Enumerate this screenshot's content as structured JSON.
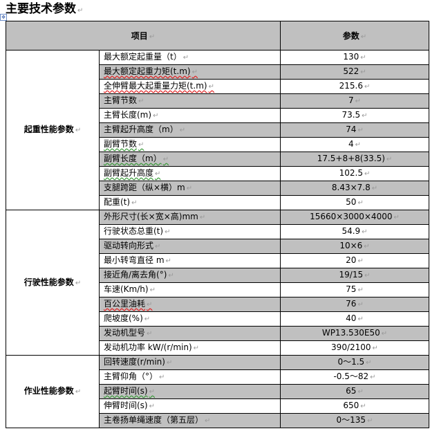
{
  "title": "主要技术参数",
  "table": {
    "headers": [
      "项目",
      "参数"
    ],
    "groups": [
      {
        "name": "起重性能参数",
        "rows": [
          {
            "item": "最大额定起重量（t）",
            "value": "130"
          },
          {
            "item": "最大额定起重力矩(t.m)",
            "value": "522"
          },
          {
            "item": "全伸臂最大起重量力矩(t.m)",
            "value": "215.6"
          },
          {
            "item": "主臂节数",
            "value": "7"
          },
          {
            "item": "主臂长度(m)",
            "value": "73.5"
          },
          {
            "item": "主臂起升高度（m）",
            "value": "74"
          },
          {
            "item": "副臂节数",
            "value": "4"
          },
          {
            "item": "副臂长度（m）",
            "value": "17.5+8+8(33.5)"
          },
          {
            "item": "副臂起升高度",
            "value": "102.5"
          },
          {
            "item": "支腿跨距（纵×横）m",
            "value": "8.43×7.8"
          },
          {
            "item": "配重(t)",
            "value": "50"
          }
        ]
      },
      {
        "name": "行驶性能参数",
        "rows": [
          {
            "item": "外形尺寸(长×宽×高)mm",
            "value": "15660×3000×4000"
          },
          {
            "item": "行驶状态总重(t)",
            "value": "54.9"
          },
          {
            "item": "驱动转向形式",
            "value": "10×6"
          },
          {
            "item": "最小转弯直径 m",
            "value": "20"
          },
          {
            "item": "接近角/离去角(°)",
            "value": "19/15"
          },
          {
            "item": "车速(Km/h)",
            "value": "75"
          },
          {
            "item": "百公里油耗",
            "value": "76"
          },
          {
            "item": "爬坡度(%)",
            "value": "40"
          },
          {
            "item": "发动机型号",
            "value": "WP13.530E50"
          },
          {
            "item": "发动机功率 kW/(r/min)",
            "value": "390/2100"
          }
        ]
      },
      {
        "name": "作业性能参数",
        "rows": [
          {
            "item": "回转速度(r/min)",
            "value": "0～1.5"
          },
          {
            "item": "主臂仰角（°）",
            "value": "-0.5～82"
          },
          {
            "item": "起臂时间(s)",
            "value": "65"
          },
          {
            "item": "伸臂时间(s)",
            "value": "650"
          },
          {
            "item": "主卷扬单绳速度（第五层）",
            "value": "0～135"
          }
        ]
      }
    ]
  },
  "colors": {
    "shade": "#c0c0c0",
    "border": "#000000"
  }
}
